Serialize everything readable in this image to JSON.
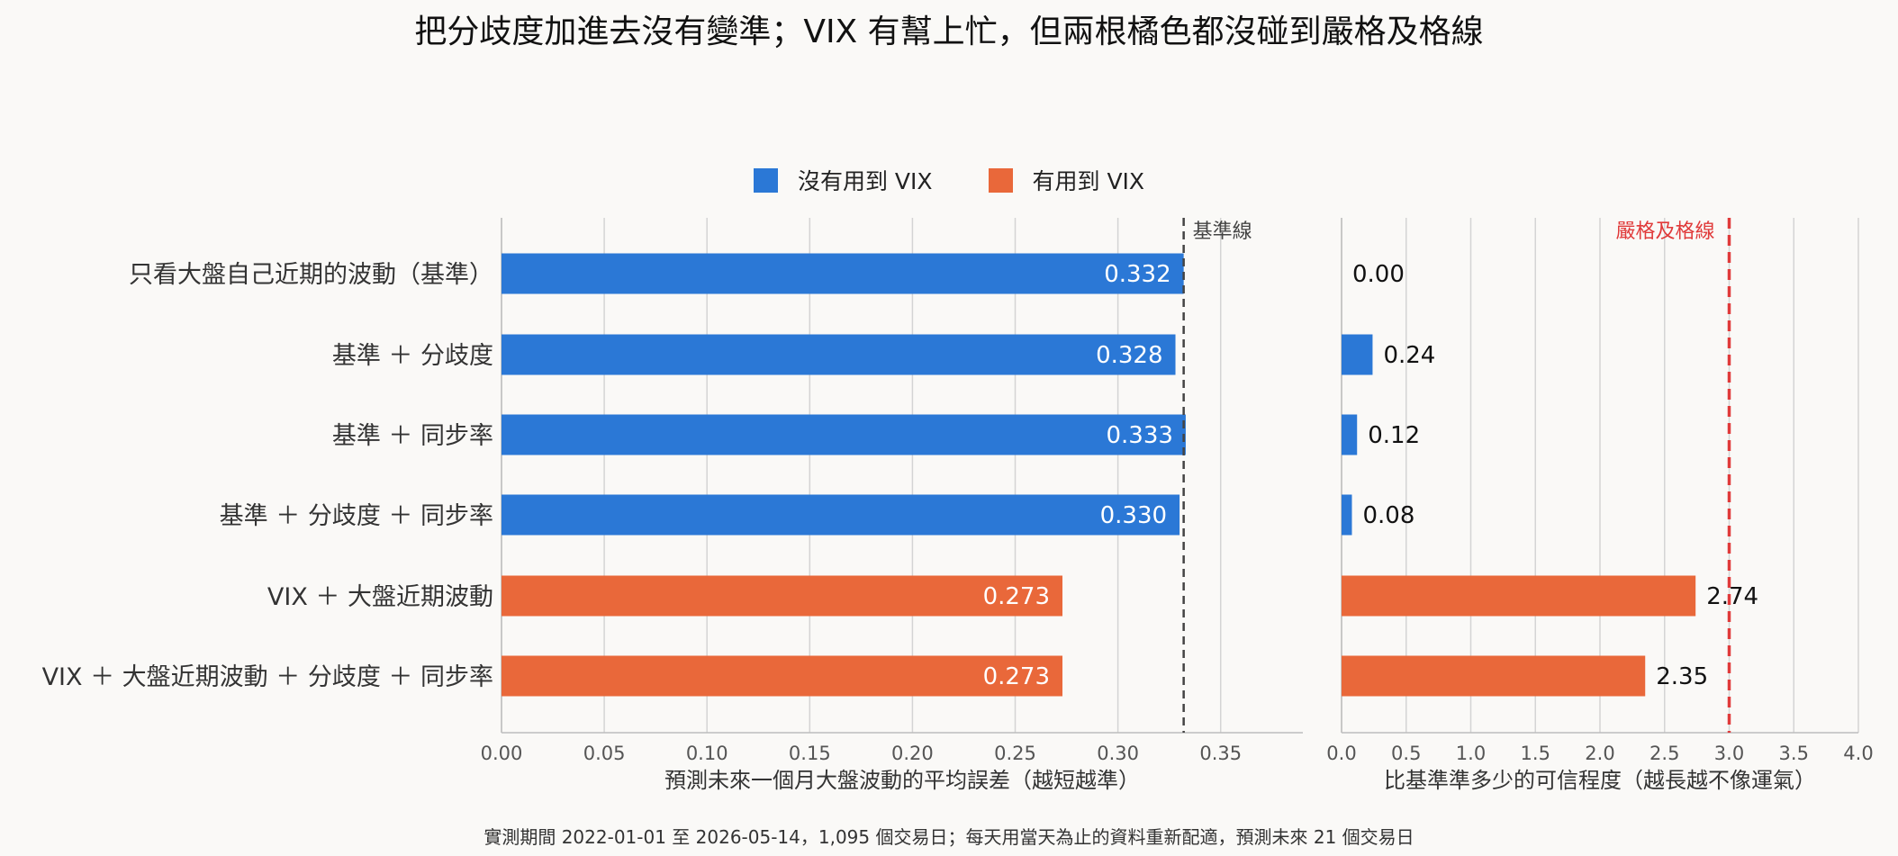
{
  "title": "把分歧度加進去沒有變準；VIX 有幫上忙，但兩根橘色都沒碰到嚴格及格線",
  "footer": "實測期間 2022-01-01 至 2026-05-14，1,095 個交易日；每天用當天為止的資料重新配適，預測未來 21 個交易日",
  "legend": [
    {
      "label": "沒有用到 VIX",
      "color": "#2b78d6"
    },
    {
      "label": "有用到 VIX",
      "color": "#e9683a"
    }
  ],
  "chart_data": [
    {
      "type": "bar",
      "orientation": "horizontal",
      "categories": [
        "只看大盤自己近期的波動（基準）",
        "基準 ＋ 分歧度",
        "基準 ＋ 同步率",
        "基準 ＋ 分歧度 ＋ 同步率",
        "VIX ＋ 大盤近期波動",
        "VIX ＋ 大盤近期波動 ＋ 分歧度 ＋ 同步率"
      ],
      "values": [
        0.332,
        0.328,
        0.333,
        0.33,
        0.273,
        0.273
      ],
      "value_labels": [
        "0.332",
        "0.328",
        "0.333",
        "0.330",
        "0.273",
        "0.273"
      ],
      "uses_vix": [
        false,
        false,
        false,
        false,
        true,
        true
      ],
      "xlabel": "預測未來一個月大盤波動的平均誤差（越短越準）",
      "xlim": [
        0,
        0.39
      ],
      "xticks": [
        0.0,
        0.05,
        0.1,
        0.15,
        0.2,
        0.25,
        0.3,
        0.35
      ],
      "xtick_labels": [
        "0.00",
        "0.05",
        "0.10",
        "0.15",
        "0.20",
        "0.25",
        "0.30",
        "0.35"
      ],
      "reference_line": {
        "value": 0.332,
        "label": "基準線",
        "color": "#444444",
        "style": "dashed"
      },
      "grid": "vertical"
    },
    {
      "type": "bar",
      "orientation": "horizontal",
      "categories": [
        "只看大盤自己近期的波動（基準）",
        "基準 ＋ 分歧度",
        "基準 ＋ 同步率",
        "基準 ＋ 分歧度 ＋ 同步率",
        "VIX ＋ 大盤近期波動",
        "VIX ＋ 大盤近期波動 ＋ 分歧度 ＋ 同步率"
      ],
      "values": [
        0.0,
        0.24,
        0.12,
        0.08,
        2.74,
        2.35
      ],
      "value_labels": [
        "0.00",
        "0.24",
        "0.12",
        "0.08",
        "2.74",
        "2.35"
      ],
      "uses_vix": [
        false,
        false,
        false,
        false,
        true,
        true
      ],
      "xlabel": "比基準準多少的可信程度（越長越不像運氣）",
      "xlim": [
        0,
        4.0
      ],
      "xticks": [
        0.0,
        0.5,
        1.0,
        1.5,
        2.0,
        2.5,
        3.0,
        3.5,
        4.0
      ],
      "xtick_labels": [
        "0.0",
        "0.5",
        "1.0",
        "1.5",
        "2.0",
        "2.5",
        "3.0",
        "3.5",
        "4.0"
      ],
      "reference_line": {
        "value": 3.0,
        "label": "嚴格及格線",
        "color": "#e03a3a",
        "style": "dashed"
      },
      "grid": "vertical"
    }
  ]
}
